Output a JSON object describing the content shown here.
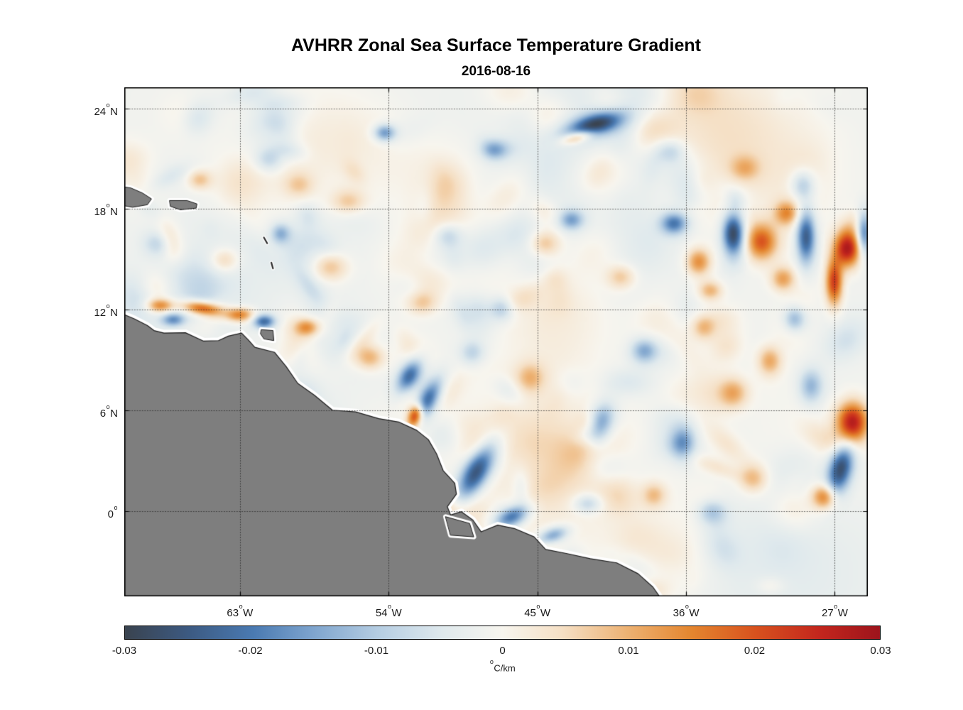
{
  "title": "AVHRR Zonal Sea Surface Temperature Gradient",
  "subtitle": "2016-08-16",
  "chart_data": {
    "type": "heatmap",
    "title": "AVHRR Zonal Sea Surface Temperature Gradient",
    "date": "2016-08-16",
    "xlabel": "",
    "ylabel": "",
    "grid": "dotted",
    "legend": "colorbar-horizontal-bottom",
    "extent": {
      "lon_min": -70,
      "lon_max": -25,
      "lat_min": -5.1,
      "lat_max": 25.25
    },
    "x_ticks": [
      {
        "value": -63,
        "label": "63",
        "sup": "o",
        "suffix": "W"
      },
      {
        "value": -54,
        "label": "54",
        "sup": "o",
        "suffix": "W"
      },
      {
        "value": -45,
        "label": "45",
        "sup": "o",
        "suffix": "W"
      },
      {
        "value": -36,
        "label": "36",
        "sup": "o",
        "suffix": "W"
      },
      {
        "value": -27,
        "label": "27",
        "sup": "o",
        "suffix": "W"
      }
    ],
    "y_ticks": [
      {
        "value": 24,
        "label": "24",
        "sup": "o",
        "suffix": "N"
      },
      {
        "value": 18,
        "label": "18",
        "sup": "o",
        "suffix": "N"
      },
      {
        "value": 12,
        "label": "12",
        "sup": "o",
        "suffix": "N"
      },
      {
        "value": 6,
        "label": "6",
        "sup": "o",
        "suffix": "N"
      },
      {
        "value": 0,
        "label": "0",
        "sup": "o",
        "suffix": ""
      }
    ],
    "colorbar": {
      "min": -0.03,
      "max": 0.03,
      "ticks": [
        "-0.03",
        "-0.02",
        "-0.01",
        "0",
        "0.01",
        "0.02",
        "0.03"
      ],
      "tick_values": [
        -0.03,
        -0.02,
        -0.01,
        0,
        0.01,
        0.02,
        0.03
      ],
      "unit_sup": "o",
      "unit": "C/km",
      "stops": [
        {
          "t": 0.0,
          "color": "#3a434f"
        },
        {
          "t": 0.085,
          "color": "#3c5a82"
        },
        {
          "t": 0.17,
          "color": "#4a7ab2"
        },
        {
          "t": 0.25,
          "color": "#7fa5ce"
        },
        {
          "t": 0.335,
          "color": "#b5cde2"
        },
        {
          "t": 0.42,
          "color": "#dfe9ed"
        },
        {
          "t": 0.5,
          "color": "#f7f5ee"
        },
        {
          "t": 0.58,
          "color": "#f5dfc4"
        },
        {
          "t": 0.665,
          "color": "#edb273"
        },
        {
          "t": 0.75,
          "color": "#e4862f"
        },
        {
          "t": 0.835,
          "color": "#d8521e"
        },
        {
          "t": 0.92,
          "color": "#c3261d"
        },
        {
          "t": 1.0,
          "color": "#9d141c"
        }
      ]
    },
    "land_color": "#7e7e7e",
    "coast_halo_color": "#ffffff",
    "coastline": [
      [
        -70.5,
        11.9
      ],
      [
        -69.4,
        11.45
      ],
      [
        -68.6,
        11.05
      ],
      [
        -68.2,
        10.75
      ],
      [
        -67.6,
        10.6
      ],
      [
        -66.3,
        10.62
      ],
      [
        -65.2,
        10.12
      ],
      [
        -64.3,
        10.15
      ],
      [
        -63.7,
        10.42
      ],
      [
        -62.9,
        10.6
      ],
      [
        -62.5,
        10.2
      ],
      [
        -62.1,
        9.75
      ],
      [
        -60.9,
        9.45
      ],
      [
        -60.2,
        8.6
      ],
      [
        -59.5,
        7.6
      ],
      [
        -58.5,
        6.9
      ],
      [
        -57.4,
        6.0
      ],
      [
        -56.0,
        5.9
      ],
      [
        -54.6,
        5.5
      ],
      [
        -53.4,
        5.3
      ],
      [
        -52.3,
        4.8
      ],
      [
        -51.6,
        4.25
      ],
      [
        -51.1,
        3.4
      ],
      [
        -50.7,
        2.4
      ],
      [
        -50.0,
        1.65
      ],
      [
        -49.9,
        1.0
      ],
      [
        -50.45,
        0.25
      ],
      [
        -50.25,
        -0.25
      ],
      [
        -49.6,
        -0.05
      ],
      [
        -48.9,
        -0.55
      ],
      [
        -48.4,
        -1.25
      ],
      [
        -47.4,
        -0.85
      ],
      [
        -46.4,
        -1.05
      ],
      [
        -45.2,
        -1.55
      ],
      [
        -44.5,
        -2.3
      ],
      [
        -43.2,
        -2.55
      ],
      [
        -41.8,
        -2.85
      ],
      [
        -40.2,
        -3.1
      ],
      [
        -38.9,
        -3.75
      ],
      [
        -38.0,
        -4.55
      ],
      [
        -37.4,
        -5.4
      ]
    ],
    "mainland_close": [
      [
        -37.2,
        -5.7
      ],
      [
        -70.6,
        -5.7
      ],
      [
        -70.6,
        11.9
      ]
    ],
    "islands": [
      {
        "name": "hispaniola-east",
        "points": [
          [
            -70.6,
            19.4
          ],
          [
            -69.6,
            19.25
          ],
          [
            -68.9,
            18.95
          ],
          [
            -68.35,
            18.6
          ],
          [
            -68.6,
            18.25
          ],
          [
            -69.5,
            18.1
          ],
          [
            -70.6,
            18.3
          ]
        ]
      },
      {
        "name": "puerto-rico",
        "points": [
          [
            -67.25,
            18.5
          ],
          [
            -66.2,
            18.5
          ],
          [
            -65.6,
            18.3
          ],
          [
            -65.65,
            18.05
          ],
          [
            -66.6,
            17.95
          ],
          [
            -67.2,
            18.15
          ]
        ]
      },
      {
        "name": "trinidad",
        "points": [
          [
            -61.7,
            10.8
          ],
          [
            -61.0,
            10.75
          ],
          [
            -60.95,
            10.15
          ],
          [
            -61.55,
            10.25
          ],
          [
            -61.75,
            10.55
          ]
        ]
      },
      {
        "name": "marajo",
        "points": [
          [
            -50.55,
            -0.35
          ],
          [
            -49.1,
            -0.75
          ],
          [
            -48.85,
            -1.55
          ],
          [
            -50.25,
            -1.45
          ]
        ]
      }
    ],
    "islets": [
      [
        [
          -61.55,
          16.3
        ],
        [
          -61.35,
          15.95
        ]
      ],
      [
        [
          -61.1,
          14.8
        ],
        [
          -61.0,
          14.45
        ]
      ]
    ],
    "features": [
      [
        -41.5,
        23.1,
        1.2,
        0.45,
        -15,
        -0.027
      ],
      [
        -42.6,
        22.35,
        0.7,
        0.25,
        -15,
        0.016
      ],
      [
        -54.3,
        22.6,
        0.45,
        0.35,
        0,
        -0.016
      ],
      [
        -47.6,
        21.6,
        0.55,
        0.4,
        0,
        -0.011
      ],
      [
        -61.3,
        21.0,
        0.6,
        0.5,
        0,
        -0.008
      ],
      [
        -33.2,
        16.6,
        0.45,
        0.85,
        0,
        -0.028
      ],
      [
        -31.5,
        16.1,
        0.65,
        0.75,
        0,
        0.02
      ],
      [
        -28.8,
        16.4,
        0.4,
        1.1,
        0,
        -0.024
      ],
      [
        -26.3,
        15.7,
        0.55,
        0.75,
        0,
        0.029
      ],
      [
        -27.1,
        13.7,
        0.35,
        0.95,
        0,
        0.024
      ],
      [
        -25.3,
        16.6,
        0.3,
        0.9,
        0,
        -0.018
      ],
      [
        -30.2,
        13.9,
        0.5,
        0.5,
        0,
        0.013
      ],
      [
        -34.6,
        13.2,
        0.5,
        0.4,
        0,
        0.011
      ],
      [
        -36.8,
        17.2,
        0.55,
        0.45,
        0,
        -0.018
      ],
      [
        -35.3,
        14.9,
        0.5,
        0.55,
        0,
        0.015
      ],
      [
        -43.0,
        17.4,
        0.5,
        0.4,
        0,
        -0.013
      ],
      [
        -44.6,
        16.0,
        0.65,
        0.55,
        0,
        0.01
      ],
      [
        -57.6,
        14.6,
        0.75,
        0.6,
        0,
        0.01
      ],
      [
        -60.6,
        16.6,
        0.4,
        0.4,
        0,
        -0.011
      ],
      [
        -65.4,
        12.15,
        0.8,
        0.28,
        8,
        0.022
      ],
      [
        -67.9,
        12.3,
        0.55,
        0.28,
        0,
        0.016
      ],
      [
        -63.1,
        11.75,
        0.6,
        0.3,
        0,
        0.018
      ],
      [
        -61.6,
        11.35,
        0.45,
        0.28,
        0,
        -0.02
      ],
      [
        -67.1,
        11.45,
        0.5,
        0.28,
        0,
        -0.016
      ],
      [
        -59.0,
        11.0,
        0.5,
        0.35,
        0,
        0.014
      ],
      [
        -52.8,
        8.1,
        0.45,
        0.75,
        30,
        -0.022
      ],
      [
        -51.7,
        6.7,
        0.45,
        0.95,
        30,
        -0.024
      ],
      [
        -52.45,
        5.75,
        0.3,
        0.5,
        20,
        0.027
      ],
      [
        -48.8,
        2.3,
        0.55,
        1.3,
        30,
        -0.026
      ],
      [
        -46.6,
        -0.3,
        0.75,
        0.4,
        -25,
        -0.02
      ],
      [
        -44.1,
        -1.4,
        0.65,
        0.33,
        -20,
        -0.016
      ],
      [
        -26.0,
        5.3,
        0.65,
        0.85,
        0,
        0.029
      ],
      [
        -26.7,
        2.6,
        0.5,
        1.1,
        15,
        -0.026
      ],
      [
        -27.7,
        0.9,
        0.5,
        0.5,
        0,
        0.018
      ],
      [
        -38.6,
        9.6,
        0.55,
        0.5,
        0,
        -0.013
      ],
      [
        -41.2,
        5.2,
        0.5,
        0.9,
        15,
        -0.013
      ],
      [
        -36.2,
        4.1,
        0.5,
        0.75,
        0,
        -0.011
      ],
      [
        -33.2,
        7.1,
        0.6,
        0.6,
        0,
        0.011
      ],
      [
        -47.2,
        12.1,
        0.5,
        0.5,
        0,
        -0.009
      ],
      [
        -55.2,
        9.2,
        0.6,
        0.5,
        0,
        0.011
      ],
      [
        -31.0,
        9.0,
        0.5,
        0.6,
        0,
        0.012
      ],
      [
        -29.5,
        11.5,
        0.45,
        0.5,
        0,
        -0.012
      ],
      [
        -40.0,
        14.0,
        0.6,
        0.5,
        0,
        0.009
      ],
      [
        -50.5,
        16.5,
        0.6,
        0.5,
        0,
        -0.008
      ],
      [
        -56.5,
        18.5,
        0.7,
        0.5,
        0,
        0.008
      ],
      [
        -64.0,
        15.0,
        0.6,
        0.5,
        0,
        0.008
      ],
      [
        -68.0,
        16.0,
        0.6,
        0.5,
        0,
        -0.007
      ],
      [
        -45.5,
        8.0,
        0.6,
        0.6,
        0,
        0.009
      ],
      [
        -35.0,
        11.0,
        0.5,
        0.5,
        0,
        0.01
      ],
      [
        -28.5,
        7.5,
        0.5,
        0.7,
        0,
        -0.012
      ],
      [
        -32.0,
        2.0,
        0.6,
        0.6,
        0,
        0.01
      ],
      [
        -34.5,
        0.0,
        0.6,
        0.5,
        0,
        -0.01
      ],
      [
        -38.0,
        1.0,
        0.5,
        0.5,
        0,
        0.009
      ],
      [
        -42.0,
        0.5,
        0.6,
        0.4,
        0,
        -0.009
      ],
      [
        -30.0,
        17.8,
        0.5,
        0.5,
        0,
        0.014
      ],
      [
        -29.0,
        19.5,
        0.5,
        0.6,
        0,
        -0.01
      ],
      [
        -32.5,
        20.5,
        0.6,
        0.5,
        0,
        0.008
      ],
      [
        -37.0,
        21.5,
        0.6,
        0.5,
        0,
        -0.008
      ],
      [
        -59.5,
        19.5,
        0.6,
        0.5,
        0,
        0.007
      ],
      [
        -65.5,
        19.8,
        0.5,
        0.4,
        0,
        0.009
      ],
      [
        -52.0,
        12.5,
        0.6,
        0.5,
        0,
        0.008
      ],
      [
        -49.0,
        9.5,
        0.5,
        0.5,
        0,
        -0.008
      ],
      [
        -55.5,
        3.5,
        0.6,
        0.5,
        0,
        0.008
      ]
    ]
  }
}
